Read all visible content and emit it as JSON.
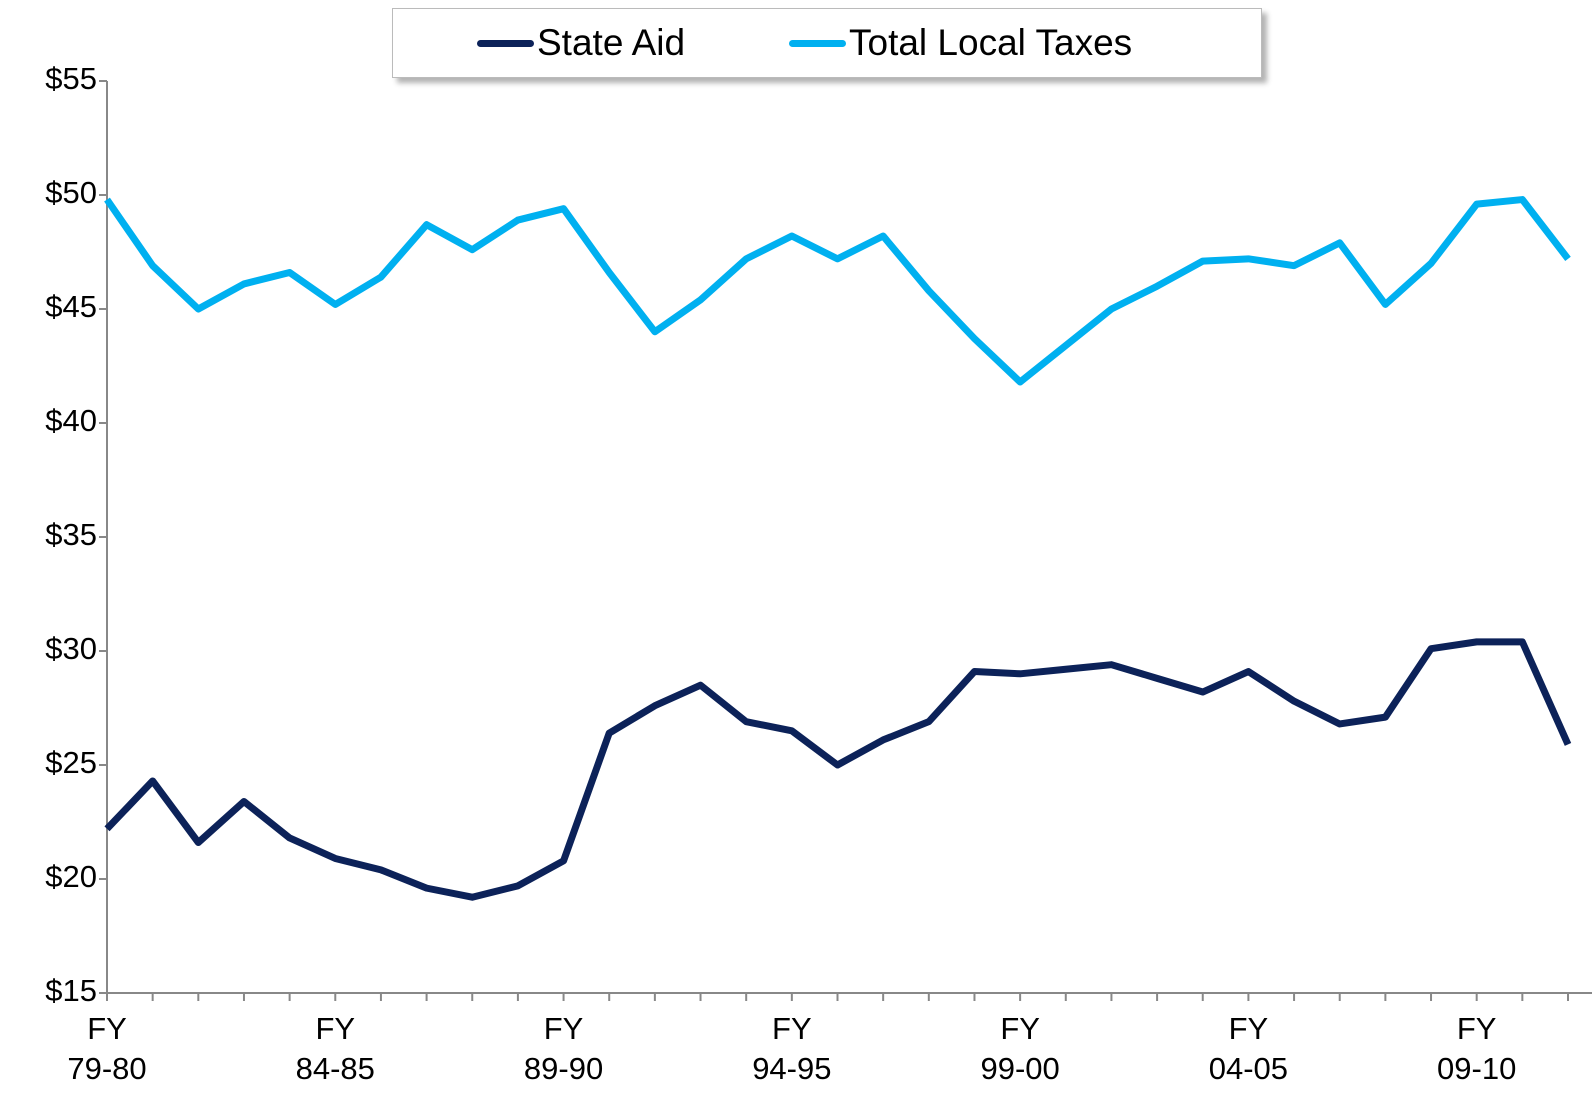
{
  "chart_data": {
    "type": "line",
    "categories": [
      "FY 79-80",
      null,
      null,
      null,
      null,
      "FY 84-85",
      null,
      null,
      null,
      null,
      "FY 89-90",
      null,
      null,
      null,
      null,
      "FY 94-95",
      null,
      null,
      null,
      null,
      "FY 99-00",
      null,
      null,
      null,
      null,
      "FY 04-05",
      null,
      null,
      null,
      null,
      "FY 09-10",
      null,
      null
    ],
    "series": [
      {
        "name": "State Aid",
        "color": "#0c2259",
        "values": [
          22.2,
          24.3,
          21.6,
          23.4,
          21.8,
          20.9,
          20.4,
          19.6,
          19.2,
          19.7,
          20.8,
          26.4,
          27.6,
          28.5,
          26.9,
          26.5,
          25.0,
          26.1,
          26.9,
          29.1,
          29.0,
          29.2,
          29.4,
          28.8,
          28.2,
          29.1,
          27.8,
          26.8,
          27.1,
          30.1,
          30.4,
          30.4,
          25.9
        ]
      },
      {
        "name": "Total Local Taxes",
        "color": "#00b0f0",
        "values": [
          49.8,
          46.9,
          45.0,
          46.1,
          46.6,
          45.2,
          46.4,
          48.7,
          47.6,
          48.9,
          49.4,
          46.6,
          44.0,
          45.4,
          47.2,
          48.2,
          47.2,
          48.2,
          45.8,
          43.7,
          41.8,
          43.4,
          45.0,
          46.0,
          47.1,
          47.2,
          46.9,
          47.9,
          45.2,
          47.0,
          49.6,
          49.8,
          47.2
        ]
      }
    ],
    "ylim": [
      15,
      55
    ],
    "yticks": [
      {
        "value": 15,
        "label": "$15"
      },
      {
        "value": 20,
        "label": "$20"
      },
      {
        "value": 25,
        "label": "$25"
      },
      {
        "value": 30,
        "label": "$30"
      },
      {
        "value": 35,
        "label": "$35"
      },
      {
        "value": 40,
        "label": "$40"
      },
      {
        "value": 45,
        "label": "$45"
      },
      {
        "value": 50,
        "label": "$50"
      },
      {
        "value": 55,
        "label": "$55"
      }
    ],
    "legend": "top"
  }
}
